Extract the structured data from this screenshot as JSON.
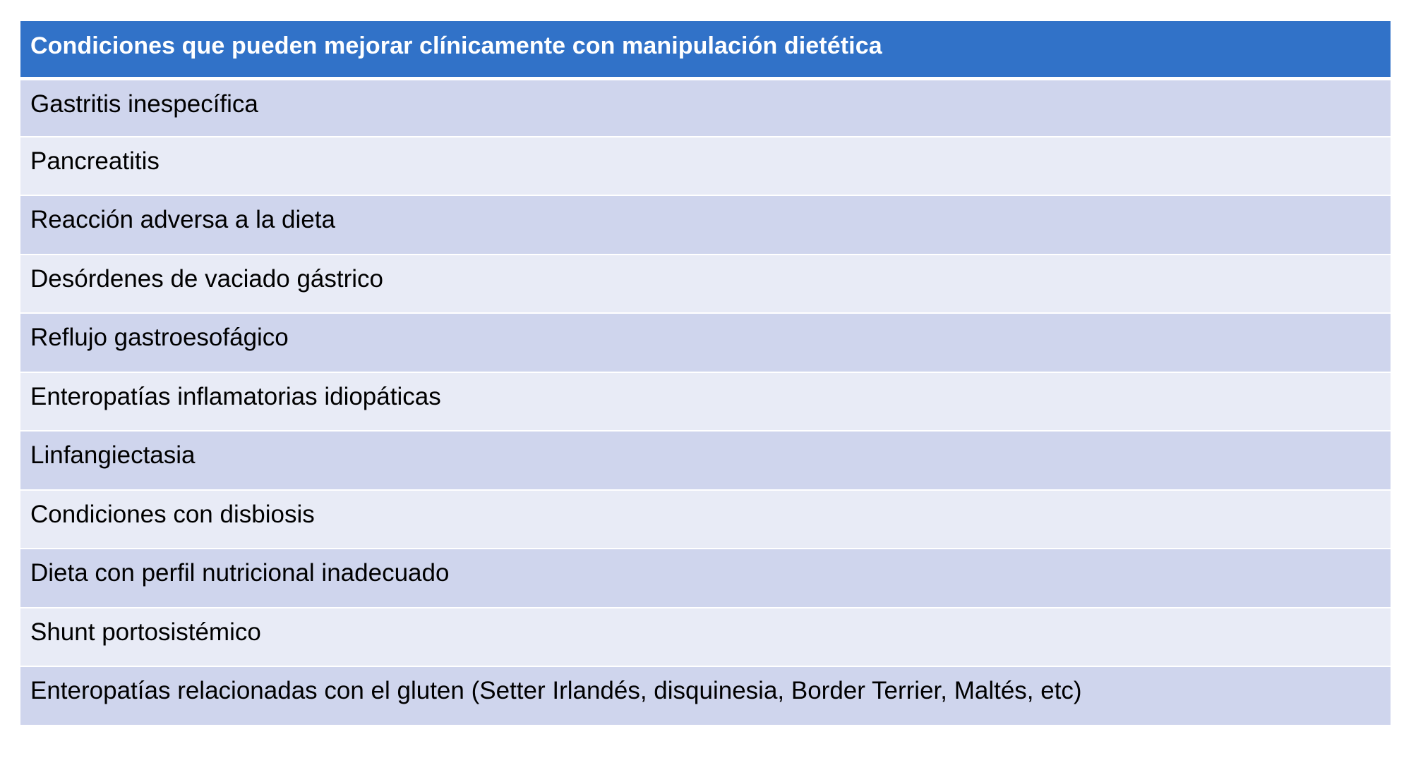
{
  "table": {
    "header": "Condiciones que pueden mejorar clínicamente con manipulación dietética",
    "rows": [
      "Gastritis inespecífica",
      "Pancreatitis",
      "Reacción adversa a la dieta",
      "Desórdenes de vaciado gástrico",
      "Reflujo gastroesofágico",
      "Enteropatías inflamatorias idiopáticas",
      "Linfangiectasia",
      "Condiciones con disbiosis",
      "Dieta con perfil nutricional inadecuado",
      "Shunt portosistémico",
      "Enteropatías relacionadas con el gluten (Setter Irlandés, disquinesia, Border Terrier, Maltés, etc)"
    ],
    "colors": {
      "header_bg": "#3172c8",
      "row_dark": "#cfd5ed",
      "row_light": "#e8ebf6"
    }
  }
}
